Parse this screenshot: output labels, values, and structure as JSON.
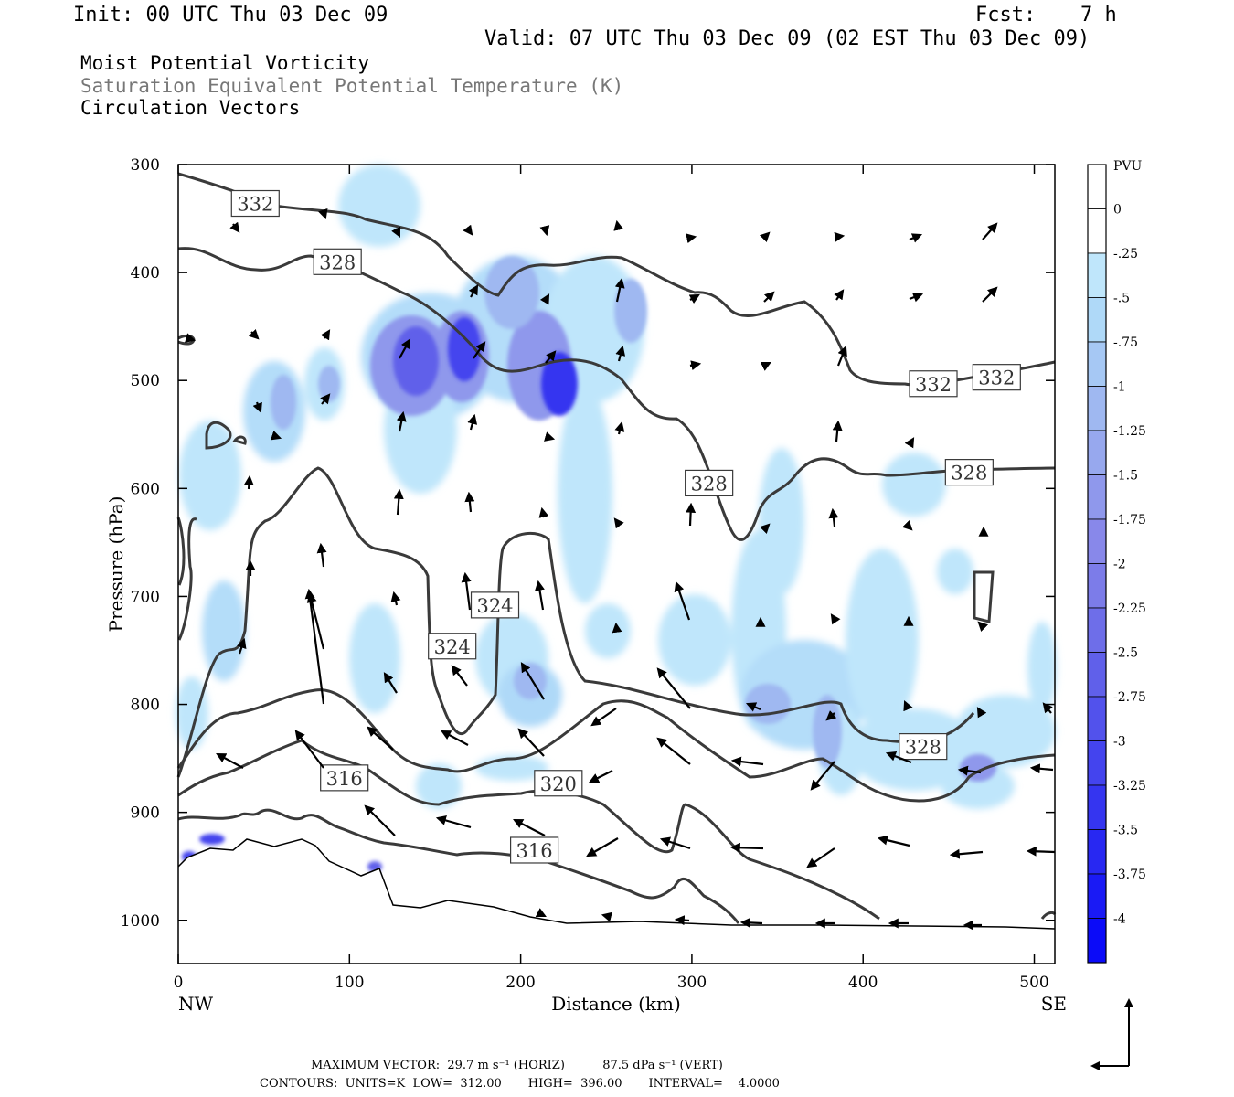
{
  "header": {
    "init": "Init: 00 UTC Thu 03 Dec 09",
    "fcst_label": "Fcst:",
    "fcst_value": "7 h",
    "valid": "Valid: 07 UTC Thu 03 Dec 09 (02 EST Thu 03 Dec 09)"
  },
  "fields": {
    "line1": "Moist Potential Vorticity",
    "line2": "Saturation Equivalent Potential Temperature (K)",
    "line3": "Circulation Vectors"
  },
  "chart_data": {
    "type": "cross-section",
    "xlabel": "Distance (km)",
    "ylabel": "Pressure (hPa)",
    "xlim": [
      0,
      512
    ],
    "ylim": [
      1040,
      300
    ],
    "x_ticks": [
      "0",
      "100",
      "200",
      "300",
      "400",
      "500"
    ],
    "y_ticks": [
      "300",
      "400",
      "500",
      "600",
      "700",
      "800",
      "900",
      "1000"
    ],
    "x_left_label": "NW",
    "x_right_label": "SE",
    "contour_labels": [
      {
        "text": "332",
        "x": 45,
        "p": 336
      },
      {
        "text": "328",
        "x": 93,
        "p": 390
      },
      {
        "text": "332",
        "x": 441,
        "p": 503
      },
      {
        "text": "332",
        "x": 478,
        "p": 497
      },
      {
        "text": "328",
        "x": 310,
        "p": 595
      },
      {
        "text": "328",
        "x": 462,
        "p": 585
      },
      {
        "text": "324",
        "x": 185,
        "p": 708
      },
      {
        "text": "324",
        "x": 160,
        "p": 746
      },
      {
        "text": "328",
        "x": 435,
        "p": 839
      },
      {
        "text": "320",
        "x": 222,
        "p": 873
      },
      {
        "text": "316",
        "x": 97,
        "p": 868
      },
      {
        "text": "316",
        "x": 208,
        "p": 935
      }
    ],
    "colorbar": {
      "unit": "PVU",
      "labels": [
        "0",
        "-.25",
        "-.5",
        "-.75",
        "-1",
        "-1.25",
        "-1.5",
        "-1.75",
        "-2",
        "-2.25",
        "-2.5",
        "-2.75",
        "-3",
        "-3.25",
        "-3.5",
        "-3.75",
        "-4"
      ],
      "colors": [
        "#ffffff",
        "#ffffff",
        "#bfe6fb",
        "#afd9f8",
        "#a6c8f4",
        "#9fb8f1",
        "#97a8ee",
        "#8f98ec",
        "#8888ea",
        "#7c7ce9",
        "#6e6ee9",
        "#6060ea",
        "#5252ec",
        "#4444ee",
        "#3535f0",
        "#2828f2",
        "#1a1af5",
        "#0b0bf8"
      ]
    }
  },
  "footer": {
    "line1": "MAXIMUM VECTOR:  29.7 m s⁻¹ (HORIZ)          87.5 dPa s⁻¹ (VERT)",
    "line2": "CONTOURS:  UNITS=K  LOW=  312.00       HIGH=  396.00       INTERVAL=    4.0000"
  }
}
